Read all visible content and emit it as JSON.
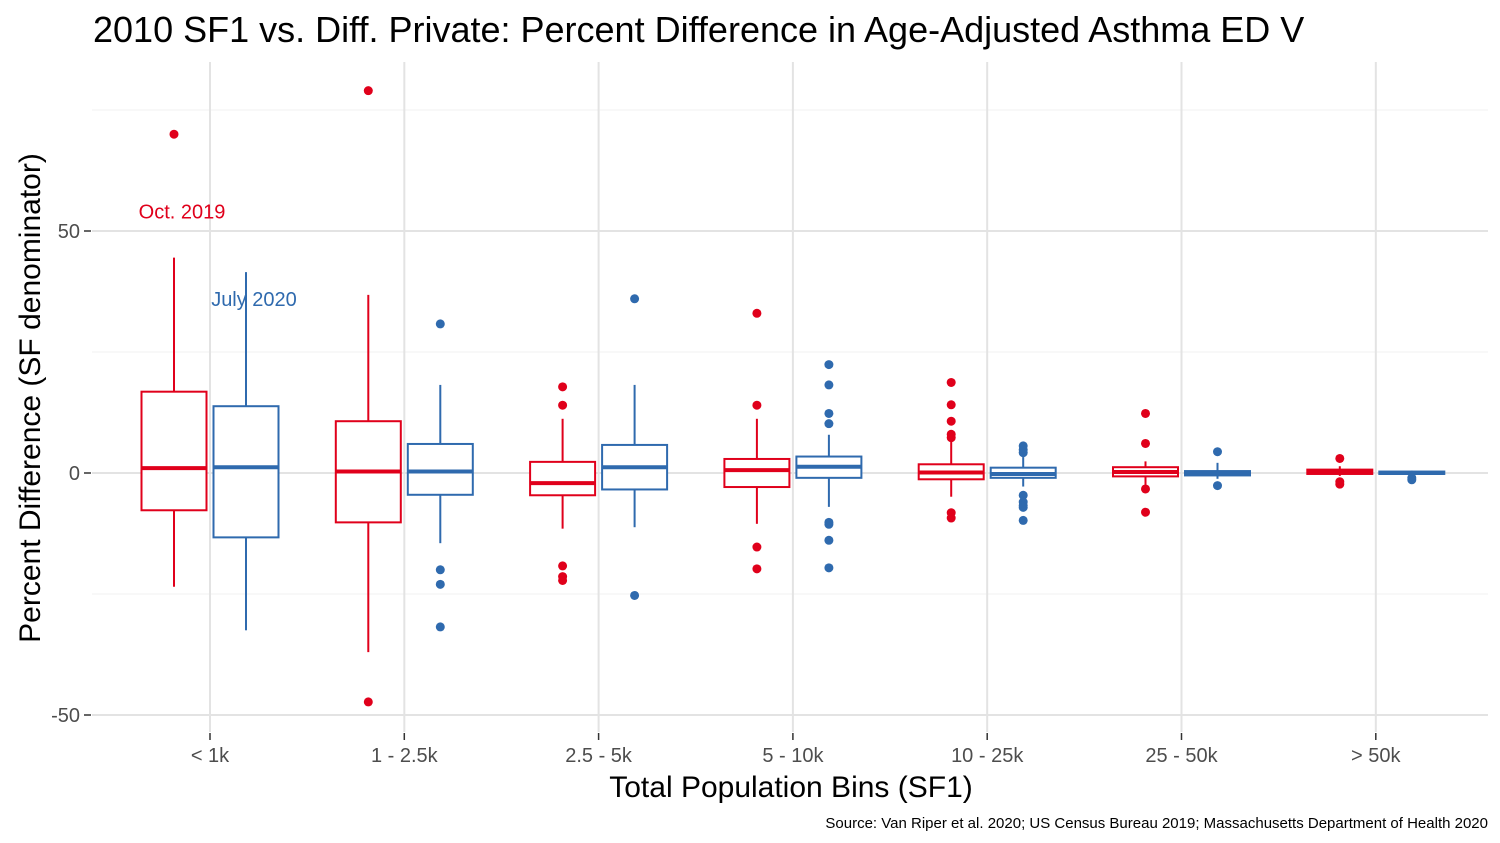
{
  "chart_data": {
    "type": "box",
    "title": "2010 SF1 vs. Diff. Private: Percent Difference in Age-Adjusted Asthma ED V",
    "xlabel": "Total Population Bins (SF1)",
    "ylabel": "Percent Difference (SF denominator)",
    "caption": "Source: Van Riper et al. 2020; US Census Bureau 2019; Massachusetts Department of Health 2020",
    "categories": [
      "< 1k",
      "1 - 2.5k",
      "2.5 - 5k",
      "5 - 10k",
      "10 - 25k",
      "25 - 50k",
      "> 50k"
    ],
    "ylim": [
      -53,
      85
    ],
    "yticks": [
      -50,
      0,
      50
    ],
    "ytick_labels": [
      "-50",
      "0",
      "50"
    ],
    "grid": true,
    "annotations": [
      {
        "text": "Oct. 2019",
        "series": "Oct. 2019",
        "category": "< 1k",
        "y": 54
      },
      {
        "text": "July 2020",
        "series": "July 2020",
        "category": "< 1k",
        "y": 36
      }
    ],
    "series": [
      {
        "name": "Oct. 2019",
        "color": "#e0001b",
        "boxes": [
          {
            "whisker_low": -23.5,
            "q1": -7.7,
            "median": 1.0,
            "q3": 16.8,
            "whisker_high": 44.5,
            "outliers": [
              70.0
            ]
          },
          {
            "whisker_low": -37.0,
            "q1": -10.2,
            "median": 0.3,
            "q3": 10.7,
            "whisker_high": 36.8,
            "outliers": [
              79.0,
              -47.3
            ]
          },
          {
            "whisker_low": -11.5,
            "q1": -4.6,
            "median": -2.1,
            "q3": 2.3,
            "whisker_high": 11.2,
            "outliers": [
              17.8,
              14.0,
              -19.2,
              -21.4,
              -22.2
            ]
          },
          {
            "whisker_low": -10.5,
            "q1": -2.9,
            "median": 0.6,
            "q3": 2.9,
            "whisker_high": 11.2,
            "outliers": [
              33.0,
              14.0,
              -15.3,
              -19.8
            ]
          },
          {
            "whisker_low": -4.9,
            "q1": -1.3,
            "median": 0.1,
            "q3": 1.8,
            "whisker_high": 6.5,
            "outliers": [
              18.7,
              14.1,
              10.7,
              8.0,
              7.3,
              -8.2,
              -9.3
            ]
          },
          {
            "whisker_low": -2.5,
            "q1": -0.7,
            "median": 0.2,
            "q3": 1.2,
            "whisker_high": 2.4,
            "outliers": [
              12.3,
              6.1,
              -3.3,
              -8.1
            ]
          },
          {
            "whisker_low": -0.6,
            "q1": -0.2,
            "median": 0.2,
            "q3": 0.7,
            "whisker_high": 1.4,
            "outliers": [
              3.0,
              -1.8,
              -2.3
            ]
          }
        ]
      },
      {
        "name": "July 2020",
        "color": "#2f6aae",
        "boxes": [
          {
            "whisker_low": -32.5,
            "q1": -13.3,
            "median": 1.2,
            "q3": 13.8,
            "whisker_high": 41.5,
            "outliers": []
          },
          {
            "whisker_low": -14.5,
            "q1": -4.5,
            "median": 0.3,
            "q3": 6.0,
            "whisker_high": 18.2,
            "outliers": [
              30.8,
              -20.0,
              -23.0,
              -31.8
            ]
          },
          {
            "whisker_low": -11.2,
            "q1": -3.4,
            "median": 1.2,
            "q3": 5.8,
            "whisker_high": 18.2,
            "outliers": [
              36.0,
              -25.3
            ]
          },
          {
            "whisker_low": -7.0,
            "q1": -1.0,
            "median": 1.3,
            "q3": 3.4,
            "whisker_high": 7.9,
            "outliers": [
              22.4,
              18.2,
              12.3,
              10.2,
              -10.2,
              -10.6,
              -13.9,
              -19.6
            ]
          },
          {
            "whisker_low": -2.8,
            "q1": -1.0,
            "median": -0.2,
            "q3": 1.1,
            "whisker_high": 3.3,
            "outliers": [
              5.6,
              4.8,
              4.2,
              -4.6,
              -6.0,
              -6.7,
              -7.1,
              -9.8
            ]
          },
          {
            "whisker_low": -1.2,
            "q1": -0.5,
            "median": -0.1,
            "q3": 0.4,
            "whisker_high": 2.1,
            "outliers": [
              4.4,
              -2.6
            ]
          },
          {
            "whisker_low": -0.7,
            "q1": -0.2,
            "median": 0.0,
            "q3": 0.3,
            "whisker_high": 0.5,
            "outliers": [
              -1.0,
              -1.4
            ]
          }
        ]
      }
    ]
  }
}
